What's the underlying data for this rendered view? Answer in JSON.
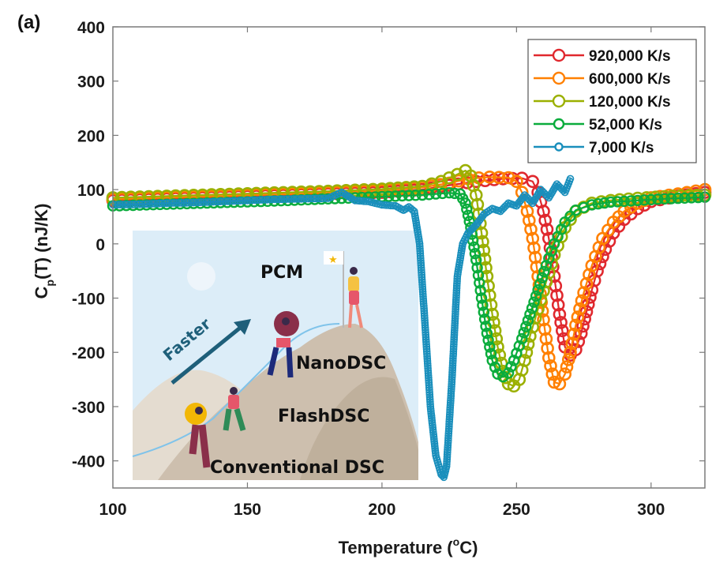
{
  "chart_data": {
    "type": "line",
    "panel_label": "(a)",
    "title": "",
    "xlabel": "Temperature (°C)",
    "xlabel_parts": {
      "base": "Temperature (",
      "sup": "o",
      "tail": "C)"
    },
    "ylabel": "C_p(T) (nJ/K)",
    "ylabel_parts": {
      "base": "C",
      "sub": "p",
      "tail": "(T) (nJ/K)"
    },
    "xlim": [
      100,
      320
    ],
    "ylim": [
      -450,
      400
    ],
    "xticks": [
      100,
      150,
      200,
      250,
      300
    ],
    "yticks": [
      400,
      300,
      200,
      100,
      0,
      -100,
      -200,
      -300,
      -400
    ],
    "grid": false,
    "legend_position": "top-right",
    "series": [
      {
        "name": "920,000 K/s",
        "color": "#e0282e",
        "marker": "open-circle-large",
        "x": [
          100,
          120,
          140,
          160,
          180,
          200,
          215,
          225,
          235,
          245,
          252,
          256,
          258,
          260,
          262,
          264,
          266,
          268,
          270,
          272,
          274,
          276,
          278,
          280,
          283,
          286,
          290,
          295,
          300,
          310,
          320
        ],
        "y": [
          80,
          83,
          86,
          89,
          92,
          95,
          100,
          108,
          115,
          120,
          121,
          115,
          95,
          60,
          10,
          -60,
          -130,
          -190,
          -205,
          -195,
          -165,
          -125,
          -85,
          -50,
          -10,
          20,
          45,
          65,
          78,
          88,
          95
        ]
      },
      {
        "name": "600,000 K/s",
        "color": "#ff8000",
        "marker": "open-circle-large",
        "x": [
          100,
          120,
          140,
          160,
          180,
          200,
          215,
          225,
          232,
          240,
          247,
          250,
          252,
          254,
          256,
          258,
          260,
          262,
          264,
          266,
          268,
          270,
          272,
          275,
          278,
          282,
          286,
          290,
          295,
          300,
          310,
          320
        ],
        "y": [
          82,
          85,
          88,
          91,
          94,
          98,
          104,
          112,
          120,
          123,
          122,
          115,
          95,
          60,
          10,
          -60,
          -140,
          -210,
          -255,
          -258,
          -240,
          -200,
          -150,
          -90,
          -40,
          10,
          40,
          60,
          75,
          85,
          92,
          100
        ]
      },
      {
        "name": "120,000 K/s",
        "color": "#9bb000",
        "marker": "open-circle-large",
        "x": [
          100,
          120,
          140,
          160,
          180,
          200,
          215,
          222,
          228,
          231,
          233,
          235,
          237,
          239,
          241,
          243,
          245,
          247,
          249,
          251,
          253,
          255,
          258,
          261,
          264,
          268,
          272,
          278,
          285,
          295,
          305,
          320
        ],
        "y": [
          85,
          88,
          91,
          94,
          97,
          101,
          106,
          115,
          128,
          135,
          125,
          90,
          20,
          -60,
          -130,
          -190,
          -235,
          -258,
          -262,
          -250,
          -215,
          -170,
          -120,
          -70,
          -20,
          30,
          60,
          75,
          80,
          84,
          87,
          90
        ]
      },
      {
        "name": "52,000 K/s",
        "color": "#0aac3c",
        "marker": "open-circle-medium",
        "x": [
          100,
          120,
          140,
          160,
          180,
          200,
          215,
          225,
          229,
          231,
          233,
          235,
          237,
          239,
          241,
          243,
          245,
          247,
          249,
          252,
          255,
          258,
          261,
          264,
          268,
          272,
          278,
          285,
          295,
          305,
          320
        ],
        "y": [
          70,
          73,
          76,
          79,
          83,
          87,
          90,
          94,
          92,
          75,
          30,
          -30,
          -100,
          -165,
          -215,
          -240,
          -245,
          -238,
          -215,
          -175,
          -130,
          -85,
          -40,
          0,
          40,
          62,
          72,
          77,
          80,
          83,
          86
        ]
      },
      {
        "name": "7,000 K/s",
        "color": "#1a8fbc",
        "marker": "open-circle-small",
        "x": [
          100,
          110,
          120,
          130,
          140,
          150,
          160,
          170,
          180,
          185,
          190,
          195,
          200,
          205,
          208,
          210,
          212,
          214,
          216,
          218,
          220,
          222,
          223,
          224,
          226,
          228,
          230,
          232,
          235,
          238,
          241,
          244,
          247,
          250,
          253,
          256,
          259,
          262,
          265,
          268,
          270
        ],
        "y": [
          72,
          73,
          75,
          76,
          78,
          80,
          82,
          83,
          84,
          95,
          80,
          78,
          72,
          70,
          62,
          68,
          60,
          0,
          -150,
          -300,
          -390,
          -425,
          -430,
          -410,
          -250,
          -60,
          0,
          20,
          35,
          55,
          65,
          60,
          75,
          70,
          90,
          75,
          100,
          85,
          110,
          95,
          120
        ]
      }
    ],
    "inset": {
      "description": "cartoon illustration of hikers climbing a mountain",
      "labels": {
        "top": "PCM",
        "level3": "NanoDSC",
        "level2": "FlashDSC",
        "level1": "Conventional DSC",
        "arrow": "Faster"
      }
    }
  }
}
